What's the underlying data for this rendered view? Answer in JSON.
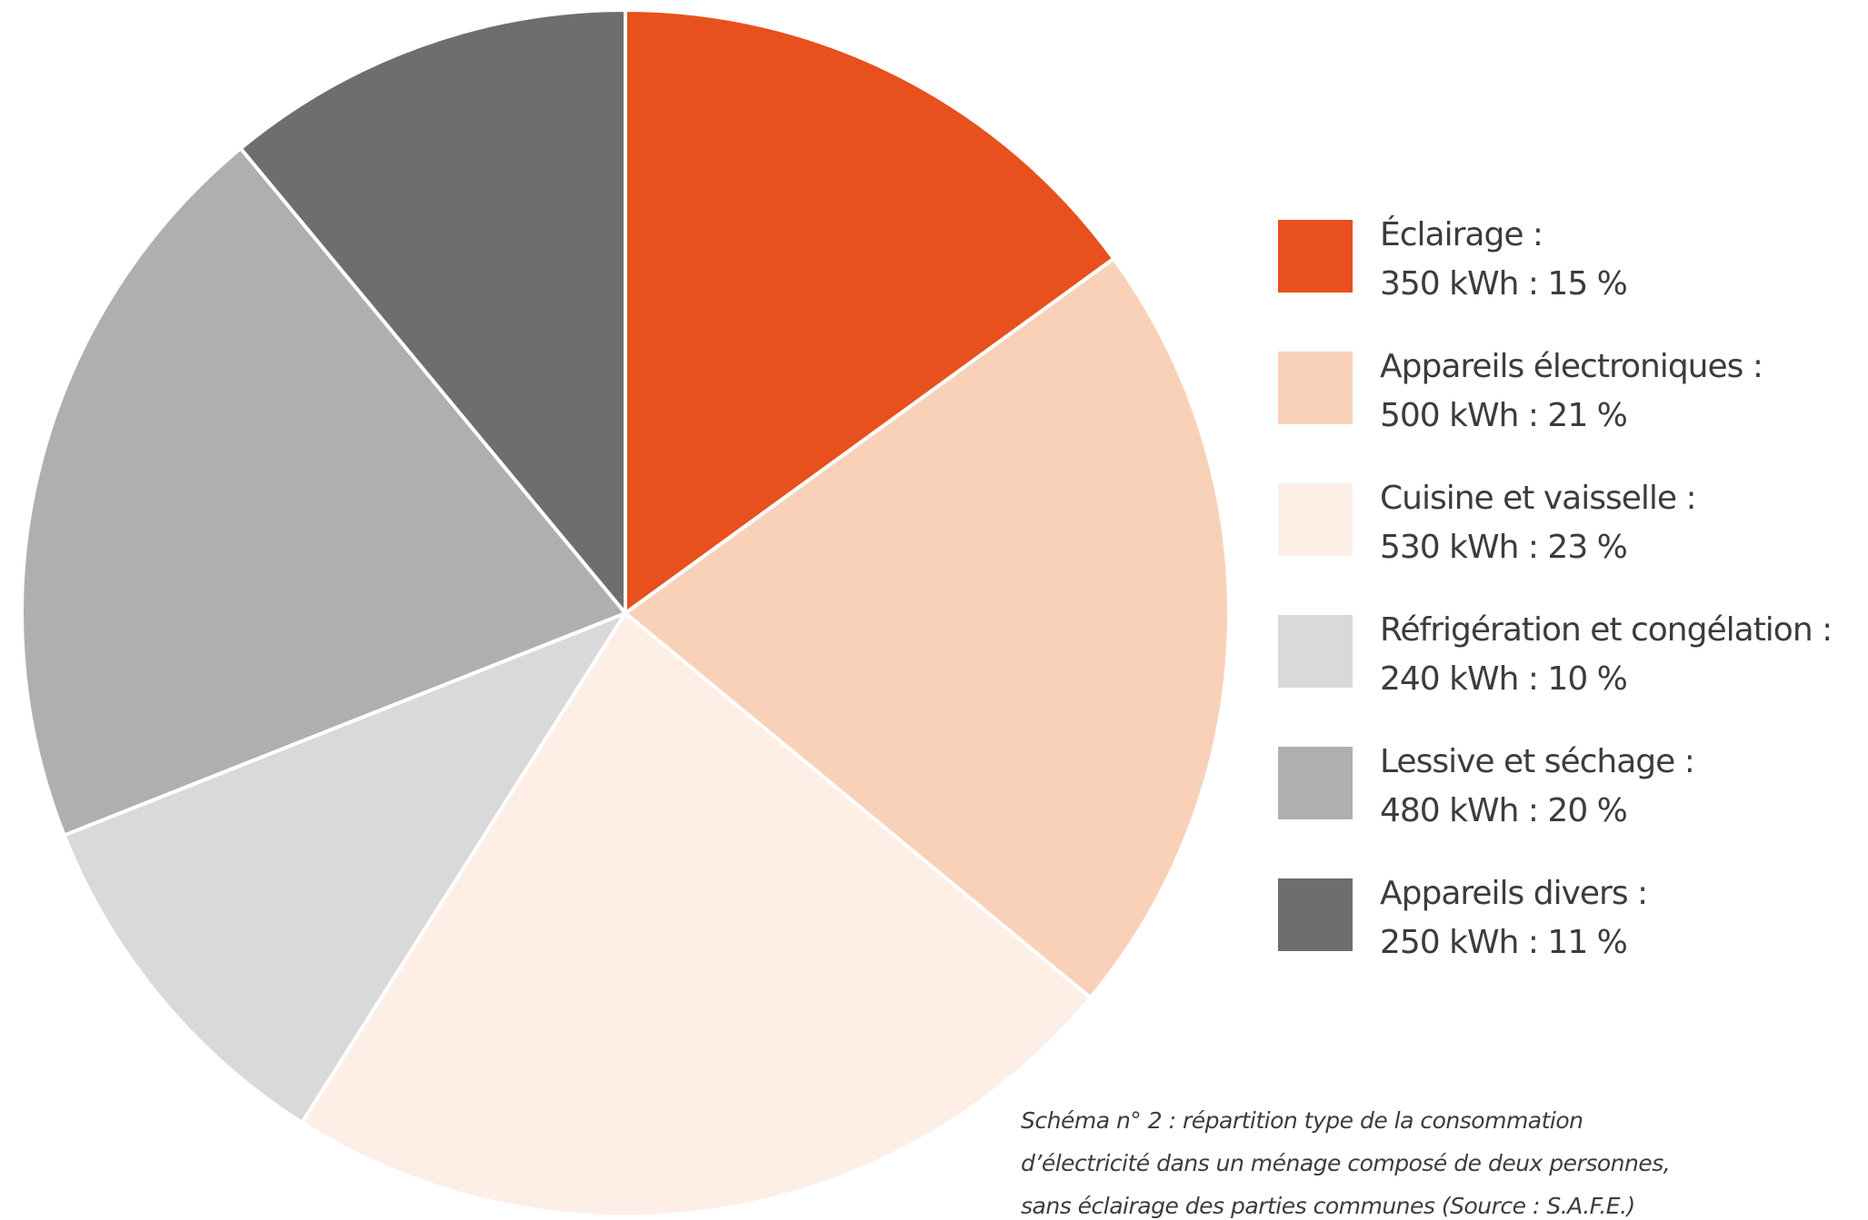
{
  "chart_data": {
    "type": "pie",
    "categories": [
      "Éclairage :",
      "Appareils électroniques :",
      "Cuisine et vaisselle :",
      "Réfrigération et congélation :",
      "Lessive et séchage :",
      "Appareils divers :"
    ],
    "values": [
      15,
      21,
      23,
      10,
      20,
      11
    ],
    "value_labels": [
      "350 kWh : 15 %",
      "500 kWh : 21 %",
      "530 kWh : 23 %",
      "240 kWh : 10 %",
      "480 kWh : 20 %",
      "250 kWh : 11 %"
    ],
    "colors": [
      "#e8501e",
      "#f9d1b9",
      "#fdeee6",
      "#d9d9d9",
      "#afafaf",
      "#6e6e6e"
    ],
    "legend": "right",
    "caption": [
      "Schéma n° 2 : répartition type de la consommation",
      "d’électricité dans un ménage composé de deux personnes,",
      "sans éclairage des parties communes (Source : S.A.F.E.)"
    ]
  }
}
